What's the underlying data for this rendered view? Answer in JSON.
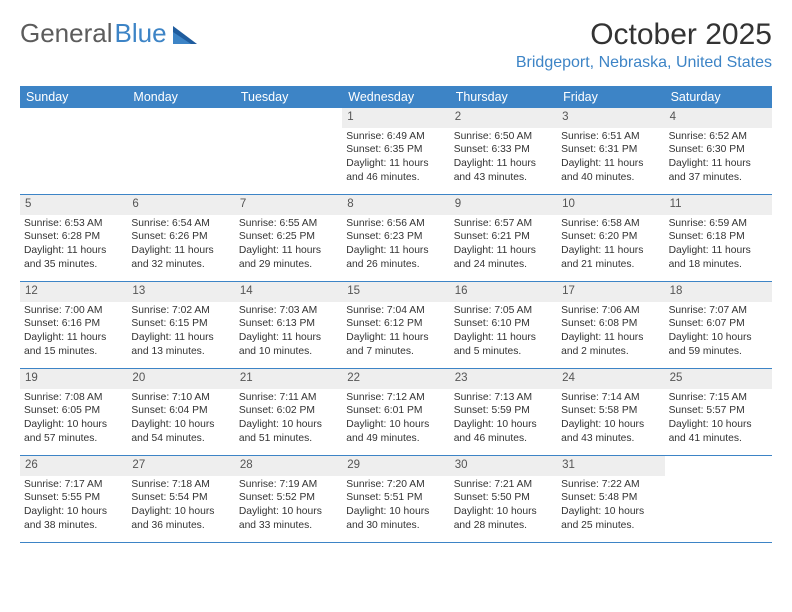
{
  "logo": {
    "text1": "General",
    "text2": "Blue"
  },
  "title": "October 2025",
  "location": "Bridgeport, Nebraska, United States",
  "colors": {
    "header_bg": "#3d84c6",
    "header_text": "#ffffff",
    "daynum_bg": "#eeeeee",
    "rule": "#3d84c6",
    "logo_gray": "#5c5c5c",
    "logo_blue": "#3d84c6"
  },
  "weekdays": [
    "Sunday",
    "Monday",
    "Tuesday",
    "Wednesday",
    "Thursday",
    "Friday",
    "Saturday"
  ],
  "labels": {
    "sunrise": "Sunrise:",
    "sunset": "Sunset:",
    "daylight": "Daylight:"
  },
  "weeks": [
    [
      {
        "n": "",
        "empty": true
      },
      {
        "n": "",
        "empty": true
      },
      {
        "n": "",
        "empty": true
      },
      {
        "n": "1",
        "sunrise": "6:49 AM",
        "sunset": "6:35 PM",
        "dl1": "11 hours",
        "dl2": "and 46 minutes."
      },
      {
        "n": "2",
        "sunrise": "6:50 AM",
        "sunset": "6:33 PM",
        "dl1": "11 hours",
        "dl2": "and 43 minutes."
      },
      {
        "n": "3",
        "sunrise": "6:51 AM",
        "sunset": "6:31 PM",
        "dl1": "11 hours",
        "dl2": "and 40 minutes."
      },
      {
        "n": "4",
        "sunrise": "6:52 AM",
        "sunset": "6:30 PM",
        "dl1": "11 hours",
        "dl2": "and 37 minutes."
      }
    ],
    [
      {
        "n": "5",
        "sunrise": "6:53 AM",
        "sunset": "6:28 PM",
        "dl1": "11 hours",
        "dl2": "and 35 minutes."
      },
      {
        "n": "6",
        "sunrise": "6:54 AM",
        "sunset": "6:26 PM",
        "dl1": "11 hours",
        "dl2": "and 32 minutes."
      },
      {
        "n": "7",
        "sunrise": "6:55 AM",
        "sunset": "6:25 PM",
        "dl1": "11 hours",
        "dl2": "and 29 minutes."
      },
      {
        "n": "8",
        "sunrise": "6:56 AM",
        "sunset": "6:23 PM",
        "dl1": "11 hours",
        "dl2": "and 26 minutes."
      },
      {
        "n": "9",
        "sunrise": "6:57 AM",
        "sunset": "6:21 PM",
        "dl1": "11 hours",
        "dl2": "and 24 minutes."
      },
      {
        "n": "10",
        "sunrise": "6:58 AM",
        "sunset": "6:20 PM",
        "dl1": "11 hours",
        "dl2": "and 21 minutes."
      },
      {
        "n": "11",
        "sunrise": "6:59 AM",
        "sunset": "6:18 PM",
        "dl1": "11 hours",
        "dl2": "and 18 minutes."
      }
    ],
    [
      {
        "n": "12",
        "sunrise": "7:00 AM",
        "sunset": "6:16 PM",
        "dl1": "11 hours",
        "dl2": "and 15 minutes."
      },
      {
        "n": "13",
        "sunrise": "7:02 AM",
        "sunset": "6:15 PM",
        "dl1": "11 hours",
        "dl2": "and 13 minutes."
      },
      {
        "n": "14",
        "sunrise": "7:03 AM",
        "sunset": "6:13 PM",
        "dl1": "11 hours",
        "dl2": "and 10 minutes."
      },
      {
        "n": "15",
        "sunrise": "7:04 AM",
        "sunset": "6:12 PM",
        "dl1": "11 hours",
        "dl2": "and 7 minutes."
      },
      {
        "n": "16",
        "sunrise": "7:05 AM",
        "sunset": "6:10 PM",
        "dl1": "11 hours",
        "dl2": "and 5 minutes."
      },
      {
        "n": "17",
        "sunrise": "7:06 AM",
        "sunset": "6:08 PM",
        "dl1": "11 hours",
        "dl2": "and 2 minutes."
      },
      {
        "n": "18",
        "sunrise": "7:07 AM",
        "sunset": "6:07 PM",
        "dl1": "10 hours",
        "dl2": "and 59 minutes."
      }
    ],
    [
      {
        "n": "19",
        "sunrise": "7:08 AM",
        "sunset": "6:05 PM",
        "dl1": "10 hours",
        "dl2": "and 57 minutes."
      },
      {
        "n": "20",
        "sunrise": "7:10 AM",
        "sunset": "6:04 PM",
        "dl1": "10 hours",
        "dl2": "and 54 minutes."
      },
      {
        "n": "21",
        "sunrise": "7:11 AM",
        "sunset": "6:02 PM",
        "dl1": "10 hours",
        "dl2": "and 51 minutes."
      },
      {
        "n": "22",
        "sunrise": "7:12 AM",
        "sunset": "6:01 PM",
        "dl1": "10 hours",
        "dl2": "and 49 minutes."
      },
      {
        "n": "23",
        "sunrise": "7:13 AM",
        "sunset": "5:59 PM",
        "dl1": "10 hours",
        "dl2": "and 46 minutes."
      },
      {
        "n": "24",
        "sunrise": "7:14 AM",
        "sunset": "5:58 PM",
        "dl1": "10 hours",
        "dl2": "and 43 minutes."
      },
      {
        "n": "25",
        "sunrise": "7:15 AM",
        "sunset": "5:57 PM",
        "dl1": "10 hours",
        "dl2": "and 41 minutes."
      }
    ],
    [
      {
        "n": "26",
        "sunrise": "7:17 AM",
        "sunset": "5:55 PM",
        "dl1": "10 hours",
        "dl2": "and 38 minutes."
      },
      {
        "n": "27",
        "sunrise": "7:18 AM",
        "sunset": "5:54 PM",
        "dl1": "10 hours",
        "dl2": "and 36 minutes."
      },
      {
        "n": "28",
        "sunrise": "7:19 AM",
        "sunset": "5:52 PM",
        "dl1": "10 hours",
        "dl2": "and 33 minutes."
      },
      {
        "n": "29",
        "sunrise": "7:20 AM",
        "sunset": "5:51 PM",
        "dl1": "10 hours",
        "dl2": "and 30 minutes."
      },
      {
        "n": "30",
        "sunrise": "7:21 AM",
        "sunset": "5:50 PM",
        "dl1": "10 hours",
        "dl2": "and 28 minutes."
      },
      {
        "n": "31",
        "sunrise": "7:22 AM",
        "sunset": "5:48 PM",
        "dl1": "10 hours",
        "dl2": "and 25 minutes."
      },
      {
        "n": "",
        "empty": true
      }
    ]
  ]
}
